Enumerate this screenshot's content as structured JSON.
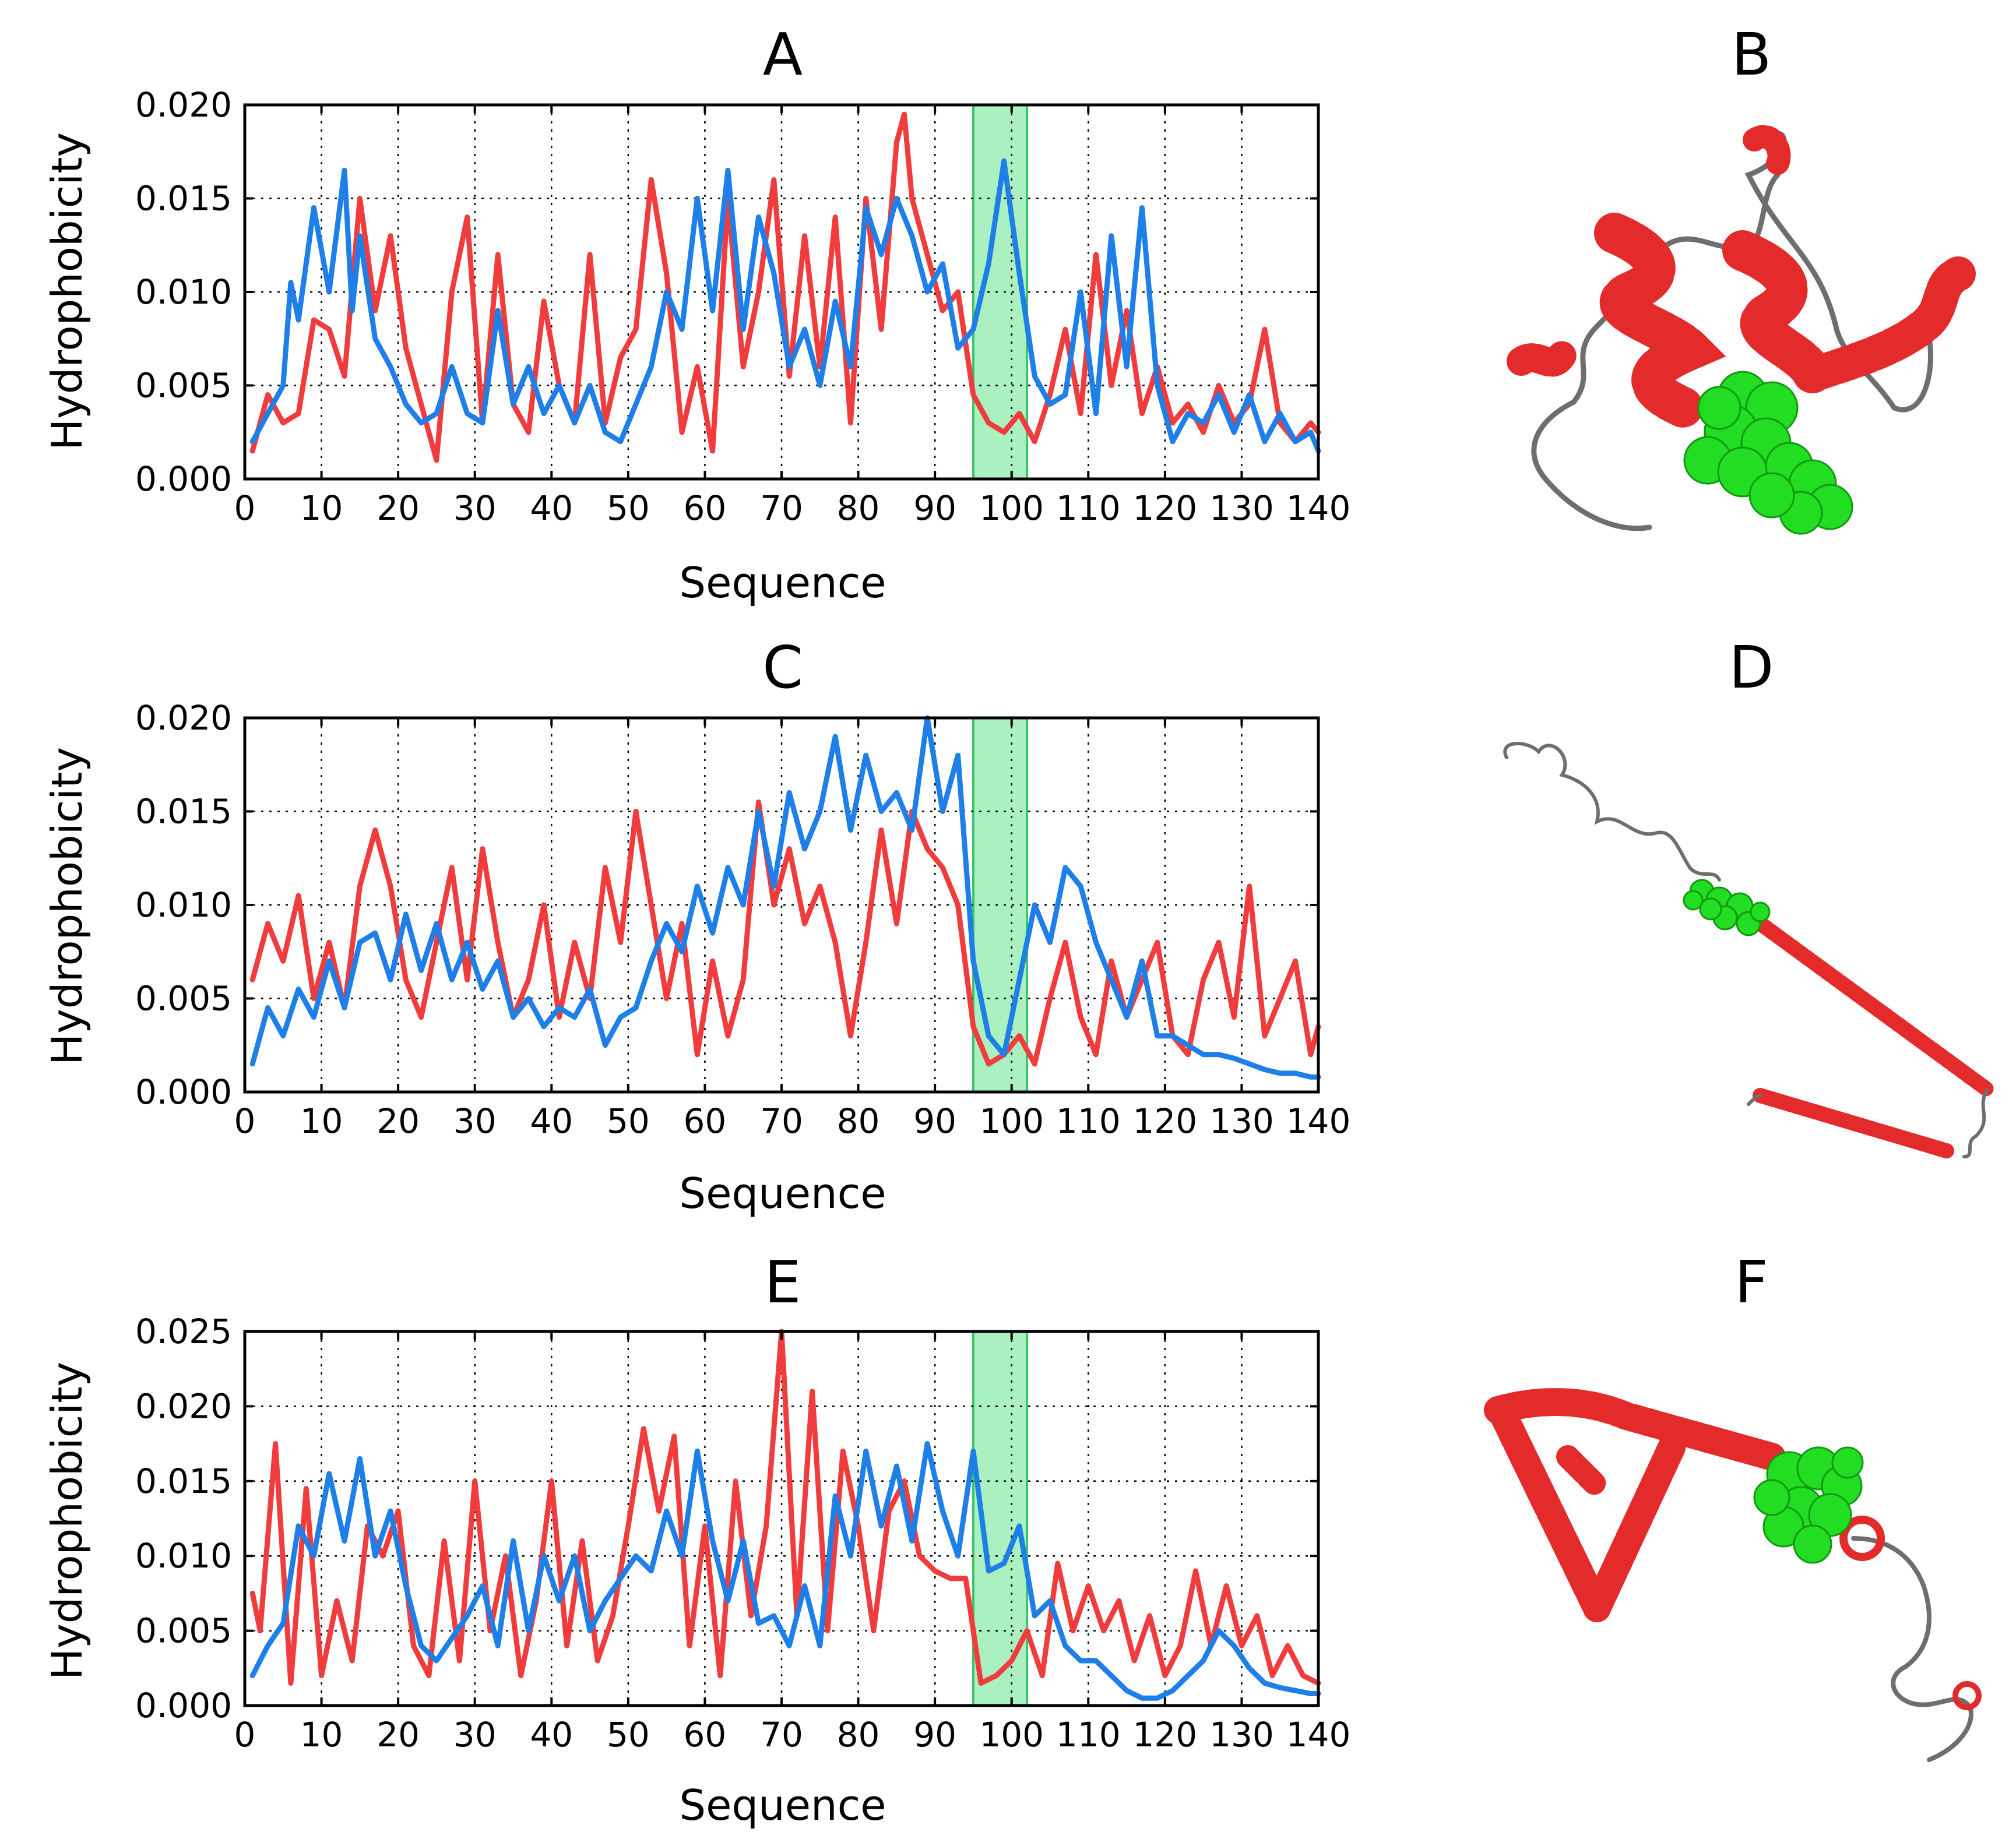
{
  "figure": {
    "series_colors": {
      "red": "#f03c3c",
      "blue": "#1f7fe8",
      "highlight": "#7ee8a0"
    },
    "structure_colors": {
      "helix": "#e32b2b",
      "coil": "#6e6e6e",
      "ligand": "#22dd22"
    },
    "panels_right": [
      {
        "letter": "B"
      },
      {
        "letter": "D"
      },
      {
        "letter": "F"
      }
    ]
  },
  "chart_data": [
    {
      "type": "line",
      "title": "A",
      "xlabel": "Sequence",
      "ylabel": "Hydrophobicity",
      "xlim": [
        0,
        140
      ],
      "ylim": [
        0,
        0.02
      ],
      "xticks": [
        "0",
        "10",
        "20",
        "30",
        "40",
        "50",
        "60",
        "70",
        "80",
        "90",
        "100",
        "110",
        "120",
        "130",
        "140"
      ],
      "yticks": [
        "0.000",
        "0.005",
        "0.010",
        "0.015",
        "0.020"
      ],
      "highlight": [
        95,
        102
      ],
      "grid": true,
      "series": [
        {
          "name": "red",
          "x": [
            1,
            3,
            5,
            7,
            9,
            11,
            13,
            15,
            17,
            19,
            21,
            23,
            25,
            27,
            29,
            31,
            33,
            35,
            37,
            39,
            41,
            43,
            45,
            47,
            49,
            51,
            53,
            55,
            57,
            59,
            61,
            63,
            65,
            67,
            69,
            71,
            73,
            75,
            77,
            79,
            81,
            83,
            85,
            86,
            87,
            89,
            91,
            93,
            95,
            97,
            99,
            101,
            103,
            105,
            107,
            109,
            111,
            113,
            115,
            117,
            119,
            121,
            123,
            125,
            127,
            129,
            131,
            133,
            135,
            137,
            139,
            140
          ],
          "values": [
            0.0015,
            0.0045,
            0.003,
            0.0035,
            0.0085,
            0.008,
            0.0055,
            0.015,
            0.009,
            0.013,
            0.007,
            0.004,
            0.001,
            0.01,
            0.014,
            0.003,
            0.012,
            0.004,
            0.0025,
            0.0095,
            0.005,
            0.003,
            0.012,
            0.003,
            0.0065,
            0.008,
            0.016,
            0.011,
            0.0025,
            0.006,
            0.0015,
            0.015,
            0.006,
            0.01,
            0.016,
            0.0055,
            0.013,
            0.006,
            0.014,
            0.003,
            0.015,
            0.008,
            0.018,
            0.0195,
            0.015,
            0.012,
            0.009,
            0.01,
            0.0045,
            0.003,
            0.0025,
            0.0035,
            0.002,
            0.0045,
            0.008,
            0.0035,
            0.012,
            0.005,
            0.009,
            0.0035,
            0.006,
            0.003,
            0.004,
            0.0025,
            0.005,
            0.003,
            0.004,
            0.008,
            0.003,
            0.002,
            0.003,
            0.0025
          ]
        },
        {
          "name": "blue",
          "x": [
            1,
            3,
            5,
            6,
            7,
            9,
            11,
            13,
            14,
            15,
            17,
            19,
            21,
            23,
            25,
            27,
            29,
            31,
            33,
            35,
            37,
            39,
            41,
            43,
            45,
            47,
            49,
            51,
            53,
            55,
            57,
            59,
            61,
            63,
            65,
            67,
            69,
            71,
            73,
            75,
            77,
            79,
            81,
            83,
            85,
            87,
            89,
            91,
            93,
            95,
            97,
            99,
            101,
            103,
            105,
            107,
            109,
            111,
            113,
            115,
            117,
            119,
            121,
            123,
            125,
            127,
            129,
            131,
            133,
            135,
            137,
            139,
            140
          ],
          "values": [
            0.002,
            0.0035,
            0.005,
            0.0105,
            0.0085,
            0.0145,
            0.01,
            0.0165,
            0.009,
            0.013,
            0.0075,
            0.006,
            0.004,
            0.003,
            0.0035,
            0.006,
            0.0035,
            0.003,
            0.009,
            0.004,
            0.006,
            0.0035,
            0.005,
            0.003,
            0.005,
            0.0025,
            0.002,
            0.004,
            0.006,
            0.01,
            0.008,
            0.015,
            0.009,
            0.0165,
            0.008,
            0.014,
            0.011,
            0.006,
            0.008,
            0.005,
            0.0095,
            0.006,
            0.0145,
            0.012,
            0.015,
            0.013,
            0.01,
            0.0115,
            0.007,
            0.008,
            0.0115,
            0.017,
            0.011,
            0.0055,
            0.004,
            0.0045,
            0.01,
            0.0035,
            0.013,
            0.006,
            0.0145,
            0.005,
            0.002,
            0.0035,
            0.003,
            0.0045,
            0.0025,
            0.0045,
            0.002,
            0.0035,
            0.002,
            0.0025,
            0.0015
          ]
        }
      ]
    },
    {
      "type": "line",
      "title": "C",
      "xlabel": "Sequence",
      "ylabel": "Hydrophobicity",
      "xlim": [
        0,
        140
      ],
      "ylim": [
        0,
        0.02
      ],
      "xticks": [
        "0",
        "10",
        "20",
        "30",
        "40",
        "50",
        "60",
        "70",
        "80",
        "90",
        "100",
        "110",
        "120",
        "130",
        "140"
      ],
      "yticks": [
        "0.000",
        "0.005",
        "0.010",
        "0.015",
        "0.020"
      ],
      "highlight": [
        95,
        102
      ],
      "grid": true,
      "series": [
        {
          "name": "red",
          "x": [
            1,
            3,
            5,
            7,
            9,
            11,
            13,
            15,
            17,
            19,
            21,
            23,
            25,
            27,
            29,
            31,
            33,
            35,
            37,
            39,
            41,
            43,
            45,
            47,
            49,
            51,
            53,
            55,
            57,
            59,
            61,
            63,
            65,
            67,
            69,
            71,
            73,
            75,
            77,
            79,
            81,
            83,
            85,
            87,
            89,
            91,
            93,
            95,
            97,
            99,
            101,
            103,
            105,
            107,
            109,
            111,
            113,
            115,
            117,
            119,
            121,
            123,
            125,
            127,
            129,
            131,
            133,
            135,
            137,
            139,
            140
          ],
          "values": [
            0.006,
            0.009,
            0.007,
            0.0105,
            0.005,
            0.008,
            0.0045,
            0.011,
            0.014,
            0.011,
            0.006,
            0.004,
            0.008,
            0.012,
            0.006,
            0.013,
            0.008,
            0.004,
            0.006,
            0.01,
            0.004,
            0.008,
            0.005,
            0.012,
            0.008,
            0.015,
            0.01,
            0.005,
            0.009,
            0.002,
            0.007,
            0.003,
            0.006,
            0.0155,
            0.01,
            0.013,
            0.009,
            0.011,
            0.008,
            0.003,
            0.008,
            0.014,
            0.009,
            0.015,
            0.013,
            0.012,
            0.01,
            0.0035,
            0.0015,
            0.002,
            0.003,
            0.0015,
            0.005,
            0.008,
            0.004,
            0.002,
            0.007,
            0.004,
            0.006,
            0.008,
            0.003,
            0.002,
            0.006,
            0.008,
            0.004,
            0.011,
            0.003,
            0.005,
            0.007,
            0.002,
            0.0035
          ]
        },
        {
          "name": "blue",
          "x": [
            1,
            3,
            5,
            7,
            9,
            11,
            13,
            15,
            17,
            19,
            21,
            23,
            25,
            27,
            29,
            31,
            33,
            35,
            37,
            39,
            41,
            43,
            45,
            47,
            49,
            51,
            53,
            55,
            57,
            59,
            61,
            63,
            65,
            67,
            69,
            71,
            73,
            75,
            77,
            79,
            81,
            83,
            85,
            87,
            89,
            91,
            93,
            95,
            97,
            99,
            101,
            103,
            105,
            107,
            109,
            111,
            113,
            115,
            117,
            119,
            121,
            123,
            125,
            127,
            129,
            131,
            133,
            135,
            137,
            139,
            140
          ],
          "values": [
            0.0015,
            0.0045,
            0.003,
            0.0055,
            0.004,
            0.007,
            0.0045,
            0.008,
            0.0085,
            0.006,
            0.0095,
            0.0065,
            0.009,
            0.006,
            0.008,
            0.0055,
            0.007,
            0.004,
            0.005,
            0.0035,
            0.0045,
            0.004,
            0.0055,
            0.0025,
            0.004,
            0.0045,
            0.007,
            0.009,
            0.0075,
            0.011,
            0.0085,
            0.012,
            0.01,
            0.015,
            0.011,
            0.016,
            0.013,
            0.015,
            0.019,
            0.014,
            0.018,
            0.015,
            0.016,
            0.014,
            0.02,
            0.015,
            0.018,
            0.007,
            0.003,
            0.002,
            0.006,
            0.01,
            0.008,
            0.012,
            0.011,
            0.008,
            0.006,
            0.004,
            0.007,
            0.003,
            0.003,
            0.0025,
            0.002,
            0.002,
            0.0018,
            0.0015,
            0.0012,
            0.001,
            0.001,
            0.0008,
            0.0008
          ]
        }
      ]
    },
    {
      "type": "line",
      "title": "E",
      "xlabel": "Sequence",
      "ylabel": "Hydrophobicity",
      "xlim": [
        0,
        140
      ],
      "ylim": [
        0,
        0.025
      ],
      "xticks": [
        "0",
        "10",
        "20",
        "30",
        "40",
        "50",
        "60",
        "70",
        "80",
        "90",
        "100",
        "110",
        "120",
        "130",
        "140"
      ],
      "yticks": [
        "0.000",
        "0.005",
        "0.010",
        "0.015",
        "0.020",
        "0.025"
      ],
      "highlight": [
        95,
        102
      ],
      "grid": true,
      "series": [
        {
          "name": "red",
          "x": [
            1,
            2,
            4,
            6,
            8,
            10,
            12,
            14,
            16,
            18,
            20,
            22,
            24,
            26,
            28,
            30,
            32,
            34,
            36,
            38,
            40,
            42,
            44,
            46,
            48,
            50,
            52,
            54,
            56,
            58,
            60,
            62,
            64,
            66,
            68,
            70,
            72,
            74,
            76,
            78,
            80,
            82,
            84,
            86,
            88,
            90,
            92,
            94,
            96,
            98,
            100,
            102,
            104,
            106,
            108,
            110,
            112,
            114,
            116,
            118,
            120,
            122,
            124,
            126,
            128,
            130,
            132,
            134,
            136,
            138,
            140
          ],
          "values": [
            0.0075,
            0.005,
            0.0175,
            0.0015,
            0.0145,
            0.002,
            0.007,
            0.003,
            0.012,
            0.01,
            0.013,
            0.004,
            0.002,
            0.011,
            0.003,
            0.015,
            0.005,
            0.01,
            0.002,
            0.007,
            0.015,
            0.004,
            0.011,
            0.003,
            0.006,
            0.012,
            0.0185,
            0.013,
            0.018,
            0.004,
            0.012,
            0.002,
            0.015,
            0.006,
            0.012,
            0.025,
            0.006,
            0.021,
            0.005,
            0.017,
            0.012,
            0.005,
            0.013,
            0.015,
            0.01,
            0.009,
            0.0085,
            0.0085,
            0.0015,
            0.002,
            0.003,
            0.005,
            0.002,
            0.0095,
            0.005,
            0.008,
            0.005,
            0.007,
            0.003,
            0.006,
            0.002,
            0.004,
            0.009,
            0.004,
            0.008,
            0.004,
            0.006,
            0.002,
            0.004,
            0.002,
            0.0015
          ]
        },
        {
          "name": "blue",
          "x": [
            1,
            3,
            5,
            7,
            9,
            11,
            13,
            15,
            17,
            19,
            21,
            23,
            25,
            27,
            29,
            31,
            33,
            35,
            37,
            39,
            41,
            43,
            45,
            47,
            49,
            51,
            53,
            55,
            57,
            59,
            61,
            63,
            65,
            67,
            69,
            71,
            73,
            75,
            77,
            79,
            81,
            83,
            85,
            87,
            89,
            91,
            93,
            95,
            97,
            99,
            101,
            103,
            105,
            107,
            109,
            111,
            113,
            115,
            117,
            119,
            121,
            123,
            125,
            127,
            129,
            131,
            133,
            135,
            137,
            139,
            140
          ],
          "values": [
            0.002,
            0.004,
            0.0055,
            0.012,
            0.01,
            0.0155,
            0.011,
            0.0165,
            0.01,
            0.013,
            0.008,
            0.004,
            0.003,
            0.0045,
            0.006,
            0.008,
            0.004,
            0.011,
            0.005,
            0.01,
            0.007,
            0.01,
            0.005,
            0.007,
            0.0085,
            0.01,
            0.009,
            0.013,
            0.01,
            0.017,
            0.011,
            0.007,
            0.011,
            0.0055,
            0.006,
            0.004,
            0.008,
            0.004,
            0.014,
            0.01,
            0.017,
            0.012,
            0.016,
            0.011,
            0.0175,
            0.013,
            0.01,
            0.017,
            0.009,
            0.0095,
            0.012,
            0.006,
            0.007,
            0.004,
            0.003,
            0.003,
            0.002,
            0.001,
            0.0005,
            0.0005,
            0.001,
            0.002,
            0.003,
            0.005,
            0.004,
            0.0025,
            0.0015,
            0.0012,
            0.001,
            0.0008,
            0.0008
          ]
        }
      ]
    }
  ]
}
